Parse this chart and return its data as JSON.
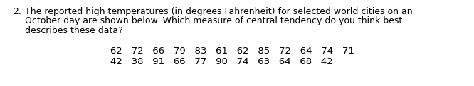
{
  "number": "2.",
  "line1": "The reported high temperatures (in degrees Fahrenheit) for selected world cities on an",
  "line2": "October day are shown below. Which measure of central tendency do you think best",
  "line3": "describes these data?",
  "data_row1": "62   72   66   79   83   61   62   85   72   64   74   71",
  "data_row2": "42   38   91   66   77   90   74   63   64   68   42",
  "bg_color": "#ffffff",
  "text_color": "#000000",
  "font_size": 9.0,
  "data_font_size": 9.5,
  "fig_width": 6.66,
  "fig_height": 1.22,
  "dpi": 100
}
